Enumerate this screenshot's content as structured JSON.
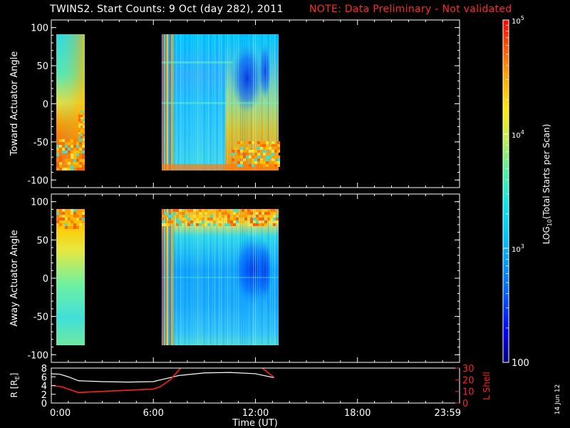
{
  "header": {
    "title": "TWINS2. Start Counts:  9 Oct (day 282), 2011",
    "note": "NOTE: Data Preliminary - Not validated"
  },
  "footer": {
    "date_stamp": "14 Jun 12"
  },
  "colors": {
    "background": "#000000",
    "axes": "#ffffff",
    "note": "#ff2a2a",
    "r_line": "#ffffff",
    "lshell_line": "#ff2020"
  },
  "chart_data": [
    {
      "type": "heatmap",
      "panel": "top",
      "ylabel": "Toward Actuator Angle",
      "xlim": [
        0,
        24
      ],
      "ylim": [
        -110,
        110
      ],
      "yticks": [
        100,
        50,
        0,
        -50,
        -100
      ],
      "xticks": [
        "0:00",
        "6:00",
        "12:00",
        "18:00",
        "23:59"
      ],
      "data_intervals_hours": [
        [
          0.0,
          1.6
        ],
        [
          6.2,
          13.1
        ]
      ],
      "value_scale": "log",
      "note": "angle coverage -90 to 90 deg"
    },
    {
      "type": "heatmap",
      "panel": "middle",
      "ylabel": "Away Actuator Angle",
      "xlim": [
        0,
        24
      ],
      "ylim": [
        -110,
        110
      ],
      "yticks": [
        100,
        50,
        0,
        -50,
        -100
      ],
      "xticks": [
        "0:00",
        "6:00",
        "12:00",
        "18:00",
        "23:59"
      ],
      "data_intervals_hours": [
        [
          0.0,
          1.6
        ],
        [
          6.2,
          13.1
        ]
      ],
      "value_scale": "log"
    },
    {
      "type": "line",
      "panel": "bottom",
      "xlabel": "Time (UT)",
      "ylabel_left": "R [R",
      "ylabel_left_sub": "E",
      "ylabel_left_close": "]",
      "ylabel_right": "L Shell",
      "xticks": [
        "0:00",
        "6:00",
        "12:00",
        "18:00",
        "23:59"
      ],
      "xlim": [
        0,
        24
      ],
      "left_ylim": [
        0,
        8
      ],
      "left_yticks": [
        8,
        6,
        4,
        2,
        0
      ],
      "right_ylim": [
        0,
        30
      ],
      "right_yticks": [
        30,
        20,
        10,
        0
      ],
      "series": [
        {
          "name": "R",
          "color": "#ffffff",
          "x": [
            0.0,
            0.5,
            1.0,
            1.6,
            3.0,
            4.5,
            6.0,
            6.3,
            7.5,
            9.0,
            10.5,
            12.0,
            13.1
          ],
          "y": [
            6.7,
            6.6,
            6.0,
            5.1,
            4.9,
            4.8,
            4.9,
            5.2,
            6.3,
            6.9,
            7.0,
            6.7,
            5.8
          ]
        },
        {
          "name": "L Shell",
          "color": "#ff2020",
          "segments": [
            {
              "x": [
                0.0,
                0.6,
                1.6,
                3.0,
                4.5,
                6.0,
                6.4,
                7.0,
                7.6
              ],
              "y": [
                15,
                14,
                9,
                10,
                11,
                12,
                14,
                20,
                30
              ]
            },
            {
              "x": [
                12.4,
                13.1
              ],
              "y": [
                30,
                22
              ]
            }
          ]
        }
      ]
    },
    {
      "type": "heatmap",
      "panel": "colorbar",
      "label": "LOG",
      "label_sub": "10",
      "label_rest": "(Total Starts per Scan)",
      "value_range": [
        100,
        100000
      ],
      "ticks": [
        {
          "exp": "5",
          "value": 100000
        },
        {
          "exp": "4",
          "value": 10000
        },
        {
          "exp": "3",
          "value": 1000
        },
        {
          "label": "100",
          "value": 100
        }
      ],
      "tick_base": "10"
    }
  ]
}
